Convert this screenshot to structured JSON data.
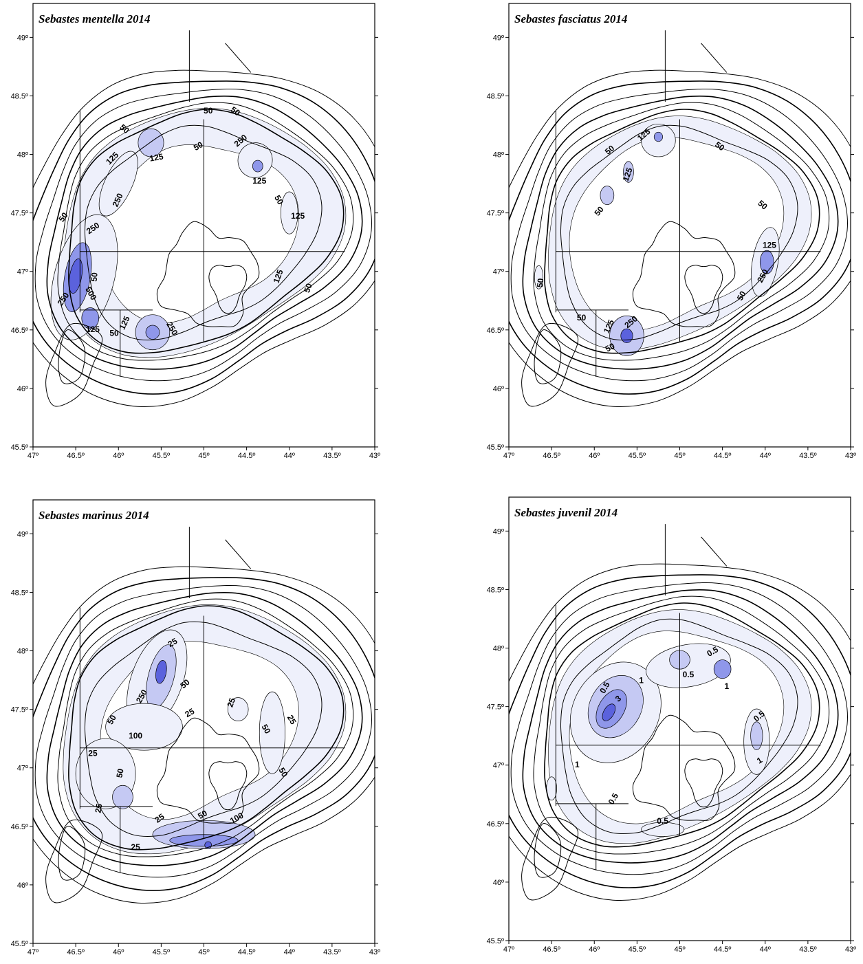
{
  "colors": {
    "density_low": "#eef0fb",
    "density_mid": "#c5c9f3",
    "density_high": "#8f97ea",
    "density_max": "#5b62dd",
    "line": "#000000"
  },
  "axis": {
    "x_ticks": [
      "47º",
      "46.5º",
      "46º",
      "45.5º",
      "45º",
      "44.5º",
      "44º",
      "43.5º",
      "43º"
    ],
    "y_ticks": [
      "49º",
      "48.5º",
      "48º",
      "47.5º",
      "47º",
      "46.5º",
      "46º",
      "45.5º"
    ],
    "x_range": [
      47,
      43
    ],
    "y_range": [
      45.5,
      49.3
    ]
  },
  "panels": [
    {
      "id": "mentella",
      "title": "Sebastes mentella 2014",
      "labels": [
        {
          "text": "50",
          "lon": 45.95,
          "lat": 48.2,
          "rot": 40
        },
        {
          "text": "50",
          "lon": 44.95,
          "lat": 48.35,
          "rot": 0
        },
        {
          "text": "50",
          "lon": 44.65,
          "lat": 48.35,
          "rot": 35
        },
        {
          "text": "250",
          "lon": 44.55,
          "lat": 48.1,
          "rot": -40
        },
        {
          "text": "125",
          "lon": 46.05,
          "lat": 47.95,
          "rot": -45
        },
        {
          "text": "125",
          "lon": 45.55,
          "lat": 47.95,
          "rot": -10
        },
        {
          "text": "50",
          "lon": 45.05,
          "lat": 48.05,
          "rot": -30
        },
        {
          "text": "125",
          "lon": 44.35,
          "lat": 47.75,
          "rot": 0
        },
        {
          "text": "250",
          "lon": 45.98,
          "lat": 47.6,
          "rot": -65
        },
        {
          "text": "50",
          "lon": 44.15,
          "lat": 47.6,
          "rot": 60
        },
        {
          "text": "50",
          "lon": 46.62,
          "lat": 47.45,
          "rot": -55
        },
        {
          "text": "250",
          "lon": 46.28,
          "lat": 47.35,
          "rot": -35
        },
        {
          "text": "125",
          "lon": 43.9,
          "lat": 47.45,
          "rot": 0
        },
        {
          "text": "50",
          "lon": 46.25,
          "lat": 46.95,
          "rot": -85
        },
        {
          "text": "125",
          "lon": 44.1,
          "lat": 46.95,
          "rot": -70
        },
        {
          "text": "50",
          "lon": 43.75,
          "lat": 46.85,
          "rot": -70
        },
        {
          "text": "250",
          "lon": 46.62,
          "lat": 46.75,
          "rot": -55
        },
        {
          "text": "500",
          "lon": 46.35,
          "lat": 46.8,
          "rot": 60
        },
        {
          "text": "125",
          "lon": 45.9,
          "lat": 46.55,
          "rot": -65
        },
        {
          "text": "250",
          "lon": 45.4,
          "lat": 46.5,
          "rot": 60
        },
        {
          "text": "125",
          "lon": 46.3,
          "lat": 46.48,
          "rot": 0
        },
        {
          "text": "50",
          "lon": 46.05,
          "lat": 46.45,
          "rot": 0
        }
      ],
      "blobs": [
        {
          "lon": 46.4,
          "lat": 46.95,
          "rx": 0.35,
          "ry": 0.55,
          "level": 1,
          "rot": 15
        },
        {
          "lon": 46.48,
          "lat": 46.95,
          "rx": 0.15,
          "ry": 0.3,
          "level": 3,
          "rot": 10
        },
        {
          "lon": 46.5,
          "lat": 46.96,
          "rx": 0.07,
          "ry": 0.15,
          "level": 4,
          "rot": 10
        },
        {
          "lon": 46.33,
          "lat": 46.6,
          "rx": 0.1,
          "ry": 0.09,
          "level": 3,
          "rot": 0
        },
        {
          "lon": 46.0,
          "lat": 47.75,
          "rx": 0.16,
          "ry": 0.3,
          "level": 1,
          "rot": 25
        },
        {
          "lon": 45.62,
          "lat": 48.1,
          "rx": 0.15,
          "ry": 0.12,
          "level": 2,
          "rot": 0
        },
        {
          "lon": 45.6,
          "lat": 46.48,
          "rx": 0.2,
          "ry": 0.15,
          "level": 2,
          "rot": 0
        },
        {
          "lon": 45.6,
          "lat": 46.48,
          "rx": 0.08,
          "ry": 0.06,
          "level": 3,
          "rot": 0
        },
        {
          "lon": 44.4,
          "lat": 47.95,
          "rx": 0.2,
          "ry": 0.15,
          "level": 1,
          "rot": 30
        },
        {
          "lon": 44.37,
          "lat": 47.9,
          "rx": 0.06,
          "ry": 0.05,
          "level": 3,
          "rot": 0
        },
        {
          "lon": 44.0,
          "lat": 47.5,
          "rx": 0.1,
          "ry": 0.18,
          "level": 1,
          "rot": 0
        }
      ],
      "band": 1
    },
    {
      "id": "fasciatus",
      "title": "Sebastes fasciatus 2014",
      "labels": [
        {
          "text": "125",
          "lon": 45.4,
          "lat": 48.15,
          "rot": -40
        },
        {
          "text": "50",
          "lon": 45.8,
          "lat": 48.02,
          "rot": -40
        },
        {
          "text": "50",
          "lon": 44.55,
          "lat": 48.05,
          "rot": 35
        },
        {
          "text": "125",
          "lon": 45.58,
          "lat": 47.82,
          "rot": -70
        },
        {
          "text": "50",
          "lon": 45.92,
          "lat": 47.5,
          "rot": -50
        },
        {
          "text": "50",
          "lon": 44.05,
          "lat": 47.55,
          "rot": 40
        },
        {
          "text": "125",
          "lon": 43.95,
          "lat": 47.2,
          "rot": 0
        },
        {
          "text": "250",
          "lon": 44.0,
          "lat": 46.95,
          "rot": -60
        },
        {
          "text": "50",
          "lon": 46.6,
          "lat": 46.9,
          "rot": -85
        },
        {
          "text": "50",
          "lon": 44.25,
          "lat": 46.78,
          "rot": -60
        },
        {
          "text": "50",
          "lon": 46.15,
          "lat": 46.58,
          "rot": 0
        },
        {
          "text": "125",
          "lon": 45.8,
          "lat": 46.52,
          "rot": -65
        },
        {
          "text": "250",
          "lon": 45.55,
          "lat": 46.55,
          "rot": -40
        },
        {
          "text": "50",
          "lon": 45.8,
          "lat": 46.33,
          "rot": -30
        }
      ],
      "blobs": [
        {
          "lon": 45.25,
          "lat": 48.12,
          "rx": 0.2,
          "ry": 0.14,
          "level": 1,
          "rot": 0
        },
        {
          "lon": 45.25,
          "lat": 48.15,
          "rx": 0.05,
          "ry": 0.04,
          "level": 3,
          "rot": 0
        },
        {
          "lon": 45.6,
          "lat": 47.85,
          "rx": 0.06,
          "ry": 0.09,
          "level": 2,
          "rot": 0
        },
        {
          "lon": 45.85,
          "lat": 47.65,
          "rx": 0.08,
          "ry": 0.08,
          "level": 2,
          "rot": 0
        },
        {
          "lon": 44.0,
          "lat": 47.08,
          "rx": 0.15,
          "ry": 0.3,
          "level": 1,
          "rot": 10
        },
        {
          "lon": 43.98,
          "lat": 47.08,
          "rx": 0.08,
          "ry": 0.1,
          "level": 3,
          "rot": 0
        },
        {
          "lon": 45.62,
          "lat": 46.45,
          "rx": 0.2,
          "ry": 0.17,
          "level": 2,
          "rot": 0
        },
        {
          "lon": 45.62,
          "lat": 46.45,
          "rx": 0.07,
          "ry": 0.06,
          "level": 4,
          "rot": 0
        },
        {
          "lon": 46.65,
          "lat": 46.95,
          "rx": 0.05,
          "ry": 0.1,
          "level": 1,
          "rot": 0
        }
      ],
      "band": 0
    },
    {
      "id": "marinus",
      "title": "Sebastes marinus 2014",
      "labels": [
        {
          "text": "25",
          "lon": 45.35,
          "lat": 48.05,
          "rot": -30
        },
        {
          "text": "50",
          "lon": 45.2,
          "lat": 47.7,
          "rot": -40
        },
        {
          "text": "250",
          "lon": 45.7,
          "lat": 47.6,
          "rot": -60
        },
        {
          "text": "50",
          "lon": 46.05,
          "lat": 47.4,
          "rot": -60
        },
        {
          "text": "25",
          "lon": 44.65,
          "lat": 47.55,
          "rot": -70
        },
        {
          "text": "100",
          "lon": 45.8,
          "lat": 47.25,
          "rot": 0
        },
        {
          "text": "25",
          "lon": 45.15,
          "lat": 47.45,
          "rot": -30
        },
        {
          "text": "50",
          "lon": 44.3,
          "lat": 47.32,
          "rot": 60
        },
        {
          "text": "25",
          "lon": 44.0,
          "lat": 47.4,
          "rot": 60
        },
        {
          "text": "25",
          "lon": 46.3,
          "lat": 47.1,
          "rot": 0
        },
        {
          "text": "50",
          "lon": 45.95,
          "lat": 46.95,
          "rot": -80
        },
        {
          "text": "50",
          "lon": 44.1,
          "lat": 46.95,
          "rot": 60
        },
        {
          "text": "25",
          "lon": 46.2,
          "lat": 46.65,
          "rot": -80
        },
        {
          "text": "25",
          "lon": 45.5,
          "lat": 46.55,
          "rot": -35
        },
        {
          "text": "50",
          "lon": 45.0,
          "lat": 46.58,
          "rot": -30
        },
        {
          "text": "100",
          "lon": 44.6,
          "lat": 46.55,
          "rot": -30
        },
        {
          "text": "25",
          "lon": 45.8,
          "lat": 46.3,
          "rot": 0
        }
      ],
      "blobs": [
        {
          "lon": 45.55,
          "lat": 47.75,
          "rx": 0.3,
          "ry": 0.45,
          "level": 1,
          "rot": 20
        },
        {
          "lon": 45.5,
          "lat": 47.78,
          "rx": 0.15,
          "ry": 0.28,
          "level": 2,
          "rot": 15
        },
        {
          "lon": 45.5,
          "lat": 47.82,
          "rx": 0.06,
          "ry": 0.1,
          "level": 4,
          "rot": 10
        },
        {
          "lon": 45.7,
          "lat": 47.35,
          "rx": 0.45,
          "ry": 0.2,
          "level": 1,
          "rot": 0
        },
        {
          "lon": 46.15,
          "lat": 46.95,
          "rx": 0.35,
          "ry": 0.3,
          "level": 1,
          "rot": 0
        },
        {
          "lon": 45.95,
          "lat": 46.75,
          "rx": 0.12,
          "ry": 0.1,
          "level": 2,
          "rot": 0
        },
        {
          "lon": 44.2,
          "lat": 47.3,
          "rx": 0.15,
          "ry": 0.35,
          "level": 1,
          "rot": 0
        },
        {
          "lon": 44.6,
          "lat": 47.5,
          "rx": 0.12,
          "ry": 0.1,
          "level": 1,
          "rot": 0
        },
        {
          "lon": 45.0,
          "lat": 46.43,
          "rx": 0.6,
          "ry": 0.12,
          "level": 2,
          "rot": 0
        },
        {
          "lon": 45.0,
          "lat": 46.38,
          "rx": 0.4,
          "ry": 0.05,
          "level": 3,
          "rot": 0
        },
        {
          "lon": 44.95,
          "lat": 46.34,
          "rx": 0.04,
          "ry": 0.03,
          "level": 4,
          "rot": 0
        }
      ],
      "band": 2
    },
    {
      "id": "juvenil",
      "title": "Sebastes juvenil 2014",
      "labels": [
        {
          "text": "0.5",
          "lon": 44.6,
          "lat": 47.95,
          "rot": -30
        },
        {
          "text": "0.5",
          "lon": 45.85,
          "lat": 47.65,
          "rot": -60
        },
        {
          "text": "3",
          "lon": 45.7,
          "lat": 47.55,
          "rot": -40
        },
        {
          "text": "1",
          "lon": 45.45,
          "lat": 47.7,
          "rot": 0
        },
        {
          "text": "0.5",
          "lon": 44.9,
          "lat": 47.75,
          "rot": 0
        },
        {
          "text": "1",
          "lon": 44.45,
          "lat": 47.65,
          "rot": 0
        },
        {
          "text": "0.5",
          "lon": 44.05,
          "lat": 47.4,
          "rot": -40
        },
        {
          "text": "1",
          "lon": 46.2,
          "lat": 46.98,
          "rot": 0
        },
        {
          "text": "1",
          "lon": 44.05,
          "lat": 47.02,
          "rot": -30
        },
        {
          "text": "0.5",
          "lon": 45.75,
          "lat": 46.7,
          "rot": -60
        },
        {
          "text": "0.5",
          "lon": 45.2,
          "lat": 46.5,
          "rot": 0
        }
      ],
      "blobs": [
        {
          "lon": 45.75,
          "lat": 47.45,
          "rx": 0.5,
          "ry": 0.45,
          "level": 1,
          "rot": 30
        },
        {
          "lon": 45.75,
          "lat": 47.5,
          "rx": 0.3,
          "ry": 0.28,
          "level": 2,
          "rot": 30
        },
        {
          "lon": 45.8,
          "lat": 47.48,
          "rx": 0.15,
          "ry": 0.18,
          "level": 3,
          "rot": 30
        },
        {
          "lon": 45.83,
          "lat": 47.45,
          "rx": 0.06,
          "ry": 0.08,
          "level": 4,
          "rot": 30
        },
        {
          "lon": 44.9,
          "lat": 47.85,
          "rx": 0.5,
          "ry": 0.18,
          "level": 1,
          "rot": -10
        },
        {
          "lon": 44.5,
          "lat": 47.82,
          "rx": 0.1,
          "ry": 0.08,
          "level": 3,
          "rot": 0
        },
        {
          "lon": 45.0,
          "lat": 47.9,
          "rx": 0.12,
          "ry": 0.08,
          "level": 2,
          "rot": 0
        },
        {
          "lon": 44.1,
          "lat": 47.2,
          "rx": 0.15,
          "ry": 0.28,
          "level": 1,
          "rot": 0
        },
        {
          "lon": 44.1,
          "lat": 47.25,
          "rx": 0.07,
          "ry": 0.12,
          "level": 2,
          "rot": 0
        },
        {
          "lon": 46.5,
          "lat": 46.8,
          "rx": 0.06,
          "ry": 0.1,
          "level": 1,
          "rot": 0
        },
        {
          "lon": 45.2,
          "lat": 46.45,
          "rx": 0.25,
          "ry": 0.06,
          "level": 1,
          "rot": 0
        }
      ],
      "band": 0
    }
  ]
}
